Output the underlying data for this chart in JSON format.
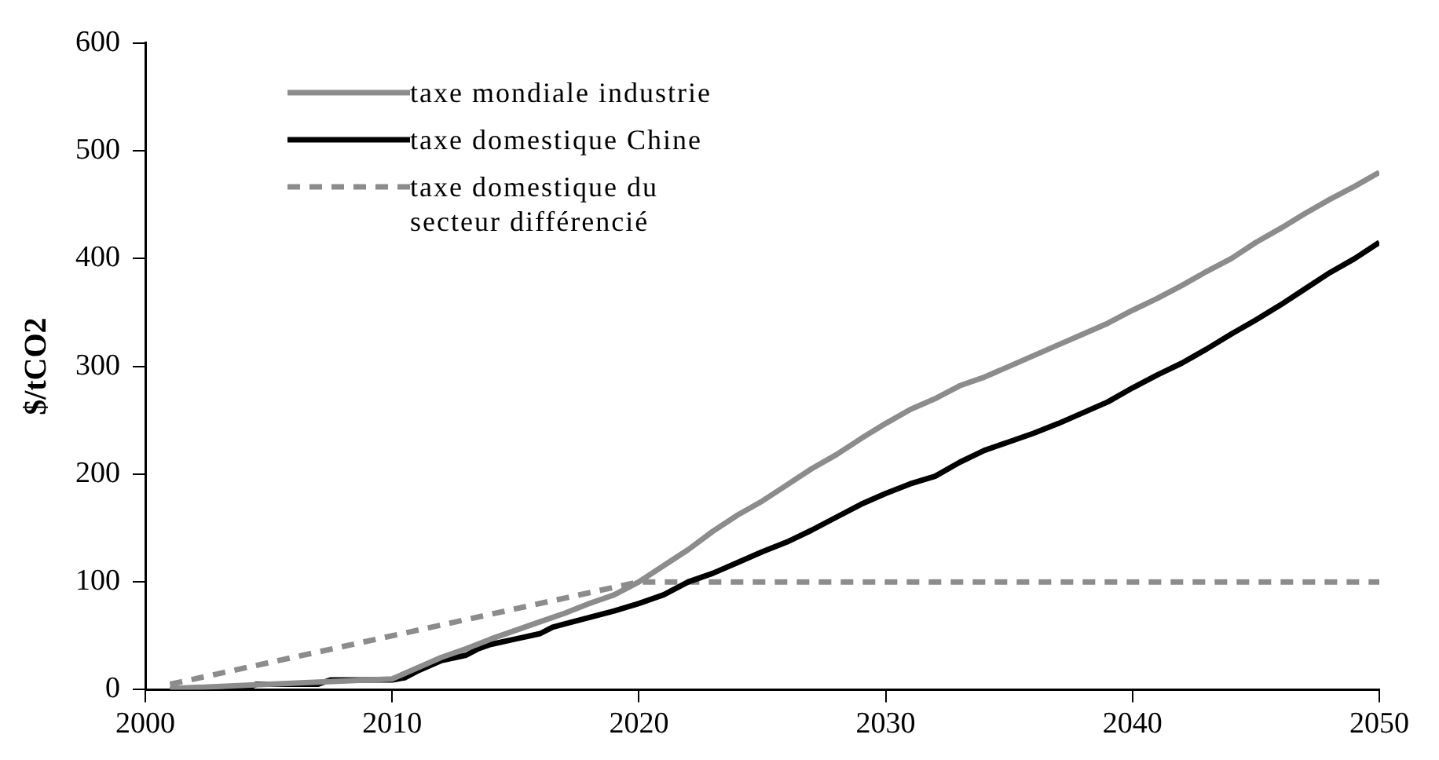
{
  "chart_data": {
    "type": "line",
    "ylabel": "$/tCO2",
    "xlim": [
      2000,
      2050
    ],
    "xticks": [
      2000,
      2010,
      2020,
      2030,
      2040,
      2050
    ],
    "ylim": [
      0,
      600
    ],
    "yticks": [
      0,
      100,
      200,
      300,
      400,
      500,
      600
    ],
    "grid": false,
    "legend": "top left",
    "marker": "none",
    "series": [
      {
        "name": "taxe mondiale industrie",
        "color": "#8c8c8c",
        "line_style": "solid",
        "x": [
          2001,
          2005,
          2010,
          2011,
          2012,
          2013,
          2014,
          2015,
          2016,
          2017,
          2018,
          2019,
          2020,
          2021,
          2022,
          2023,
          2024,
          2025,
          2026,
          2027,
          2028,
          2029,
          2030,
          2031,
          2032,
          2033,
          2034,
          2035,
          2036,
          2037,
          2038,
          2039,
          2040,
          2041,
          2042,
          2043,
          2044,
          2045,
          2046,
          2047,
          2048,
          2049,
          2050
        ],
        "values": [
          1,
          5,
          10,
          20,
          30,
          38,
          47,
          55,
          63,
          71,
          80,
          88,
          100,
          115,
          130,
          147,
          162,
          175,
          190,
          205,
          218,
          233,
          247,
          260,
          270,
          282,
          290,
          300,
          310,
          320,
          330,
          340,
          352,
          363,
          375,
          388,
          400,
          415,
          428,
          442,
          455,
          467,
          480
        ]
      },
      {
        "name": "taxe domestique Chine",
        "color": "#000000",
        "line_style": "solid",
        "x": [
          2001,
          2004,
          2004.5,
          2007,
          2007.5,
          2010,
          2010.5,
          2011,
          2012,
          2013,
          2013.5,
          2014,
          2015,
          2016,
          2016.5,
          2017,
          2018,
          2019,
          2020,
          2021,
          2022,
          2023,
          2024,
          2025,
          2026,
          2027,
          2028,
          2029,
          2030,
          2031,
          2032,
          2033,
          2034,
          2035,
          2036,
          2037,
          2038,
          2039,
          2040,
          2041,
          2042,
          2043,
          2044,
          2045,
          2046,
          2047,
          2048,
          2049,
          2050
        ],
        "values": [
          0,
          0,
          5,
          5,
          9,
          9,
          11,
          17,
          27,
          32,
          38,
          42,
          47,
          52,
          58,
          61,
          67,
          73,
          80,
          88,
          100,
          108,
          118,
          128,
          137,
          148,
          160,
          172,
          182,
          191,
          198,
          211,
          222,
          230,
          238,
          247,
          257,
          267,
          280,
          292,
          303,
          316,
          330,
          343,
          357,
          372,
          387,
          400,
          415
        ]
      },
      {
        "name": "taxe domestique du secteur différencié",
        "color": "#8c8c8c",
        "line_style": "dashed",
        "x": [
          2001,
          2020,
          2050
        ],
        "values": [
          5,
          100,
          100
        ]
      }
    ]
  }
}
